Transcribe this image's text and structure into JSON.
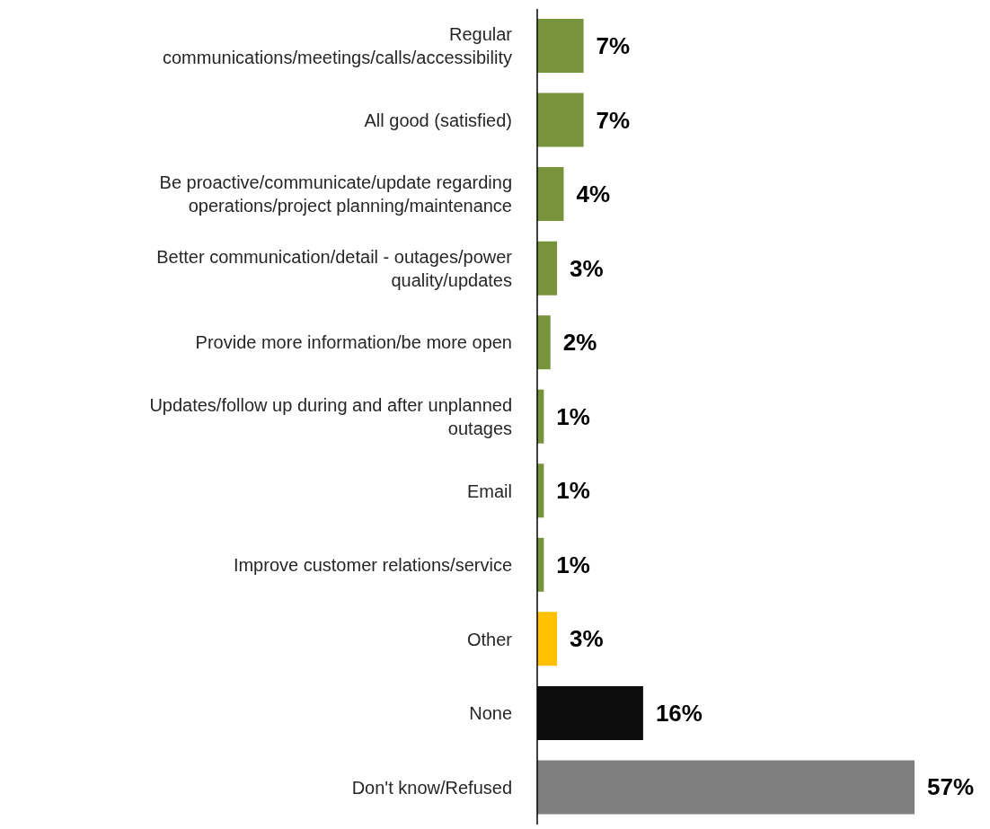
{
  "chart_data": {
    "type": "bar",
    "orientation": "horizontal",
    "categories": [
      "Regular communications/meetings/calls/accessibility",
      "All good (satisfied)",
      "Be proactive/communicate/update regarding operations/project planning/maintenance",
      "Better communication/detail - outages/power quality/updates",
      "Provide more information/be more open",
      "Updates/follow up during and after unplanned outages",
      "Email",
      "Improve customer relations/service",
      "Other",
      "None",
      "Don't know/Refused"
    ],
    "values": [
      7,
      7,
      4,
      3,
      2,
      1,
      1,
      1,
      3,
      16,
      57
    ],
    "colors": [
      "#77933c",
      "#77933c",
      "#77933c",
      "#77933c",
      "#77933c",
      "#77933c",
      "#77933c",
      "#77933c",
      "#ffc000",
      "#0d0d0d",
      "#7f7f7f"
    ],
    "value_labels": [
      "7%",
      "7%",
      "4%",
      "3%",
      "2%",
      "1%",
      "1%",
      "1%",
      "3%",
      "16%",
      "57%"
    ]
  }
}
